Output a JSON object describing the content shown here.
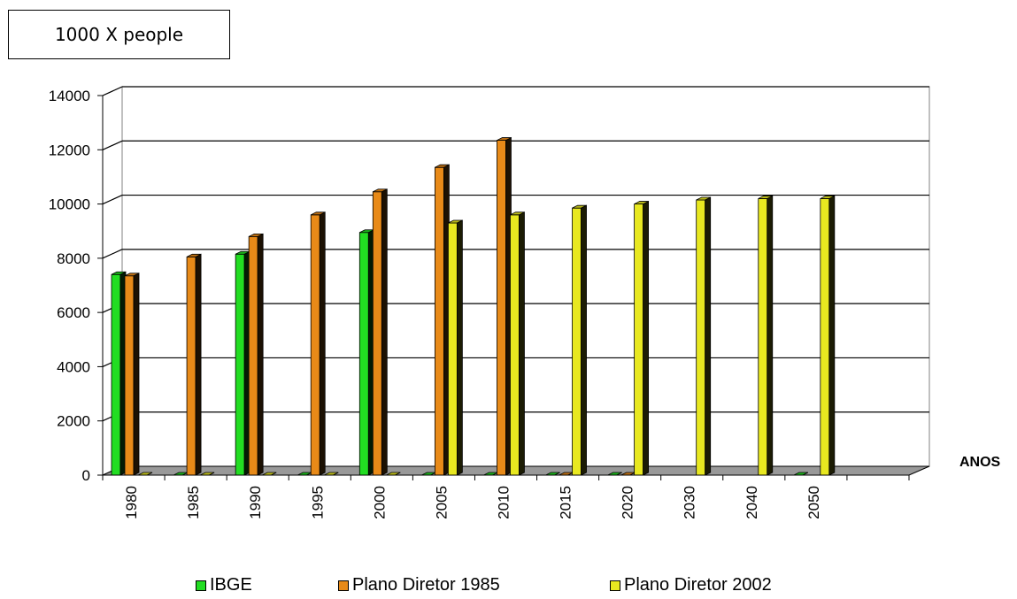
{
  "unit_label": "1000 X people",
  "legend": [
    {
      "label": "IBGE",
      "color": "#22dd22"
    },
    {
      "label": "Plano Diretor 1985",
      "color": "#e88a18"
    },
    {
      "label": "Plano Diretor 2002",
      "color": "#e8e820"
    }
  ],
  "chart_data": {
    "type": "bar",
    "title": "",
    "xlabel": "ANOS",
    "ylabel": "",
    "ylim": [
      0,
      14000
    ],
    "y_ticks": [
      "0",
      "2000",
      "4000",
      "6000",
      "8000",
      "10000",
      "12000",
      "14000"
    ],
    "categories": [
      "1980",
      "1985",
      "1990",
      "1995",
      "2000",
      "2005",
      "2010",
      "2015",
      "2020",
      "2030",
      "2040",
      "2050"
    ],
    "series": [
      {
        "name": "IBGE",
        "color": "#22dd22",
        "values": [
          7400,
          0,
          8150,
          0,
          8950,
          0,
          0,
          0,
          0,
          null,
          null,
          0
        ]
      },
      {
        "name": "Plano Diretor 1985",
        "color": "#e88a18",
        "values": [
          7350,
          8050,
          8800,
          9600,
          10450,
          11350,
          12350,
          0,
          0,
          null,
          null,
          null
        ]
      },
      {
        "name": "Plano Diretor 2002",
        "color": "#e8e820",
        "values": [
          0,
          0,
          0,
          0,
          0,
          9300,
          9600,
          9850,
          10000,
          10150,
          10200,
          10200
        ]
      }
    ],
    "grid": true,
    "legend_position": "bottom"
  }
}
